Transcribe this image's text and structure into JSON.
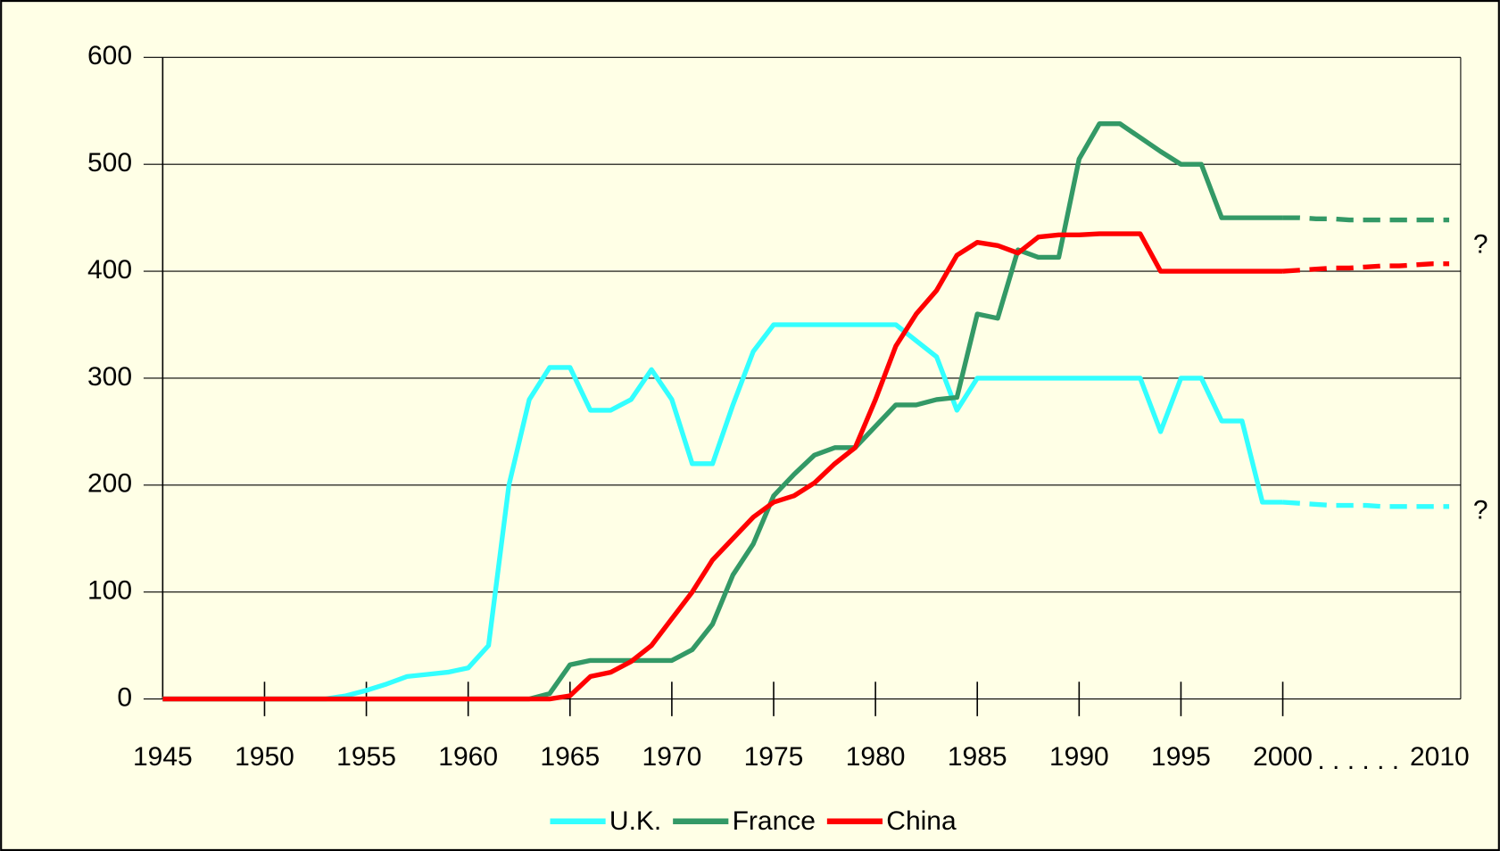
{
  "chart_data": {
    "type": "line",
    "x": [
      1945,
      1946,
      1947,
      1948,
      1949,
      1950,
      1951,
      1952,
      1953,
      1954,
      1955,
      1956,
      1957,
      1958,
      1959,
      1960,
      1961,
      1962,
      1963,
      1964,
      1965,
      1966,
      1967,
      1968,
      1969,
      1970,
      1971,
      1972,
      1973,
      1974,
      1975,
      1976,
      1977,
      1978,
      1979,
      1980,
      1981,
      1982,
      1983,
      1984,
      1985,
      1986,
      1987,
      1988,
      1989,
      1990,
      1991,
      1992,
      1993,
      1994,
      1995,
      1996,
      1997,
      1998,
      1999,
      2000,
      2001,
      2002,
      2003,
      2004,
      2005,
      2006,
      2007,
      2008,
      2009,
      2010
    ],
    "series": [
      {
        "name": "U.K.",
        "color": "#33ffff",
        "values": [
          0,
          0,
          0,
          0,
          0,
          0,
          0,
          0,
          0,
          3,
          8,
          14,
          21,
          23,
          25,
          29,
          50,
          200,
          280,
          310,
          310,
          270,
          270,
          280,
          308,
          280,
          220,
          220,
          275,
          325,
          350,
          350,
          350,
          350,
          350,
          350,
          350,
          335,
          320,
          270,
          300,
          300,
          300,
          300,
          300,
          300,
          300,
          300,
          300,
          250,
          300,
          300,
          260,
          260,
          184,
          184,
          183,
          182,
          181,
          181,
          181,
          180,
          180,
          180,
          180,
          180
        ]
      },
      {
        "name": "France",
        "color": "#339966",
        "values": [
          0,
          0,
          0,
          0,
          0,
          0,
          0,
          0,
          0,
          0,
          0,
          0,
          0,
          0,
          0,
          0,
          0,
          0,
          0,
          5,
          32,
          36,
          36,
          36,
          36,
          36,
          46,
          70,
          116,
          145,
          190,
          210,
          228,
          235,
          235,
          255,
          275,
          275,
          280,
          282,
          360,
          356,
          420,
          413,
          413,
          505,
          538,
          538,
          525,
          512,
          500,
          500,
          450,
          450,
          450,
          450,
          450,
          449,
          449,
          448,
          448,
          448,
          448,
          448,
          448,
          448
        ]
      },
      {
        "name": "China",
        "color": "#ff0000",
        "values": [
          0,
          0,
          0,
          0,
          0,
          0,
          0,
          0,
          0,
          0,
          0,
          0,
          0,
          0,
          0,
          0,
          0,
          0,
          0,
          0,
          3,
          21,
          25,
          35,
          50,
          75,
          100,
          130,
          150,
          170,
          184,
          190,
          202,
          220,
          235,
          280,
          330,
          360,
          382,
          415,
          427,
          424,
          417,
          432,
          434,
          434,
          435,
          435,
          435,
          400,
          400,
          400,
          400,
          400,
          400,
          400,
          401,
          402,
          403,
          403,
          404,
          405,
          405,
          406,
          407,
          407
        ]
      }
    ],
    "dashed_from": 2000,
    "xlim": [
      1945,
      2010
    ],
    "xticks": [
      1945,
      1950,
      1955,
      1960,
      1965,
      1970,
      1975,
      1980,
      1985,
      1990,
      1995,
      2000,
      2010
    ],
    "x_break_label": ". . . . . .",
    "ylim": [
      0,
      600
    ],
    "yticks": [
      0,
      100,
      200,
      300,
      400,
      500,
      600
    ],
    "grid": true,
    "annotations": [
      {
        "text": "?"
      },
      {
        "text": "?"
      }
    ]
  }
}
